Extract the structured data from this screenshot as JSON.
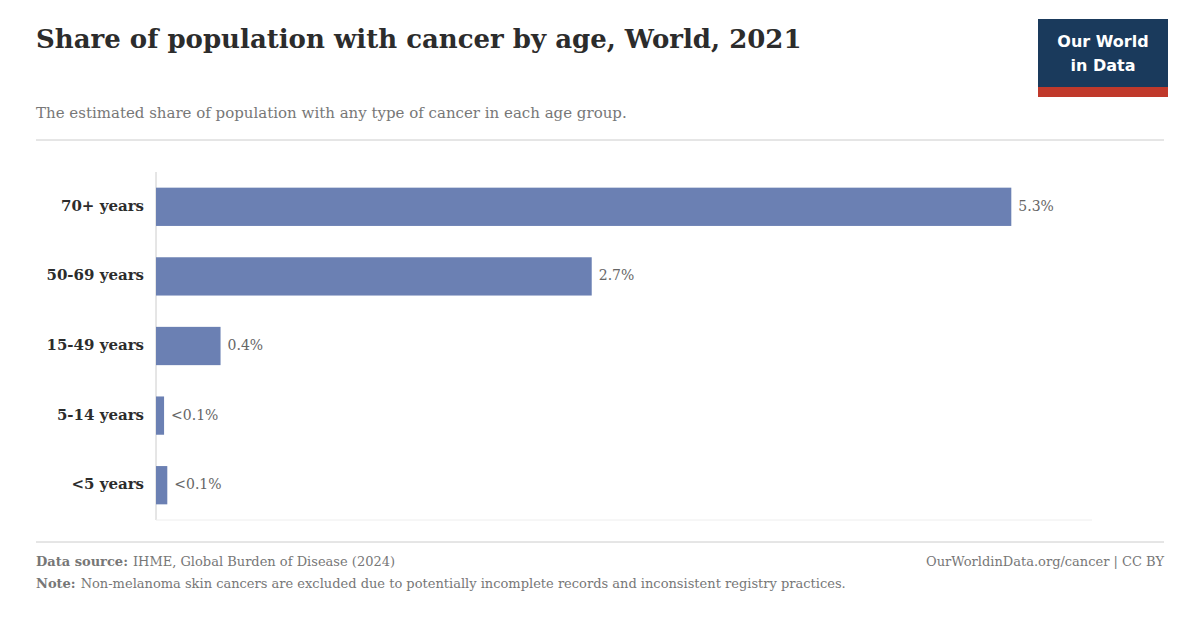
{
  "chart_data": {
    "type": "bar",
    "orientation": "horizontal",
    "title": "Share of population with cancer by age, World, 2021",
    "subtitle": "The estimated share of population with any type of cancer in each age group.",
    "categories": [
      "70+ years",
      "50-69 years",
      "15-49 years",
      "5-14 years",
      "<5 years"
    ],
    "values": [
      5.3,
      2.7,
      0.4,
      0.05,
      0.07
    ],
    "value_labels": [
      "5.3%",
      "2.7%",
      "0.4%",
      "<0.1%",
      "<0.1%"
    ],
    "data_labels": true,
    "color": "#6b80b3",
    "xlim": [
      0,
      5.8
    ],
    "tick_labels": "y",
    "grid": false,
    "annotations": [
      "Data source:",
      "IHME, Global Burden of Disease (2024)",
      "OurWorldinData.org/cancer | CC BY",
      "Note:",
      "Non-melanoma skin cancers are excluded due to potentially incomplete records and inconsistent registry practices.",
      "Our World",
      "in Data"
    ]
  }
}
